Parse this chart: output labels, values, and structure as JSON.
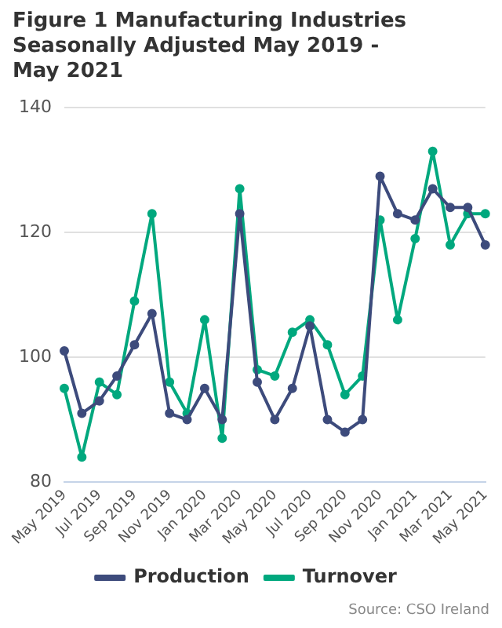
{
  "chart_data": {
    "type": "line",
    "title": "Figure 1 Manufacturing Industries Seasonally Adjusted May 2019 - May 2021",
    "categories": [
      "May 2019",
      null,
      "Jul 2019",
      null,
      "Sep 2019",
      null,
      "Nov 2019",
      null,
      "Jan 2020",
      null,
      "Mar 2020",
      null,
      "May 2020",
      null,
      "Jul 2020",
      null,
      "Sep 2020",
      null,
      "Nov 2020",
      null,
      "Jan 2021",
      null,
      "Mar 2021",
      null,
      "May 2021"
    ],
    "series": [
      {
        "name": "Production",
        "color": "#3d4b7c",
        "values": [
          101,
          91,
          93,
          97,
          102,
          107,
          91,
          90,
          95,
          90,
          123,
          96,
          90,
          95,
          105,
          90,
          88,
          90,
          129,
          123,
          122,
          127,
          124,
          124,
          118
        ]
      },
      {
        "name": "Turnover",
        "color": "#00a87e",
        "values": [
          95,
          84,
          96,
          94,
          109,
          123,
          96,
          91,
          106,
          87,
          127,
          98,
          97,
          104,
          106,
          102,
          94,
          97,
          122,
          106,
          119,
          133,
          118,
          123,
          123
        ]
      }
    ],
    "ylim": [
      80,
      140
    ],
    "yticks": [
      80,
      100,
      120,
      140
    ],
    "grid": "y",
    "legend": "bottom",
    "marker": "circle",
    "line_style": "solid",
    "annotations": [
      "Source: CSO Ireland"
    ]
  }
}
